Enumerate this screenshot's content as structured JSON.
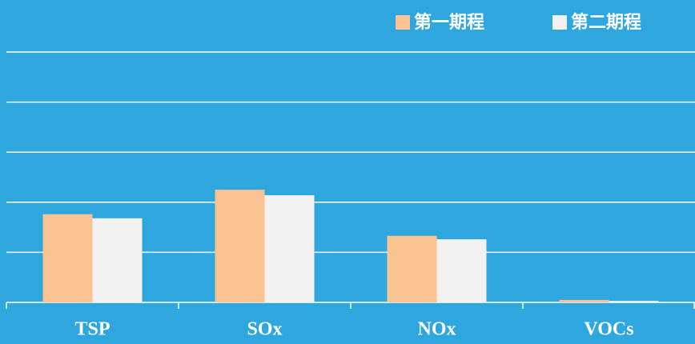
{
  "chart_data": {
    "type": "bar",
    "categories": [
      "TSP",
      "SOx",
      "NOx",
      "VOCs"
    ],
    "series": [
      {
        "name": "第一期程",
        "color": "#f9c392",
        "values": [
          1.76,
          2.25,
          1.33,
          0.05
        ]
      },
      {
        "name": "第二期程",
        "color": "#f2f2f2",
        "values": [
          1.68,
          2.14,
          1.26,
          0.03
        ]
      }
    ],
    "ylim": [
      0,
      5
    ],
    "yticks": [
      0,
      1,
      2,
      3,
      4,
      5
    ],
    "grid": true,
    "legend": "top-right"
  }
}
